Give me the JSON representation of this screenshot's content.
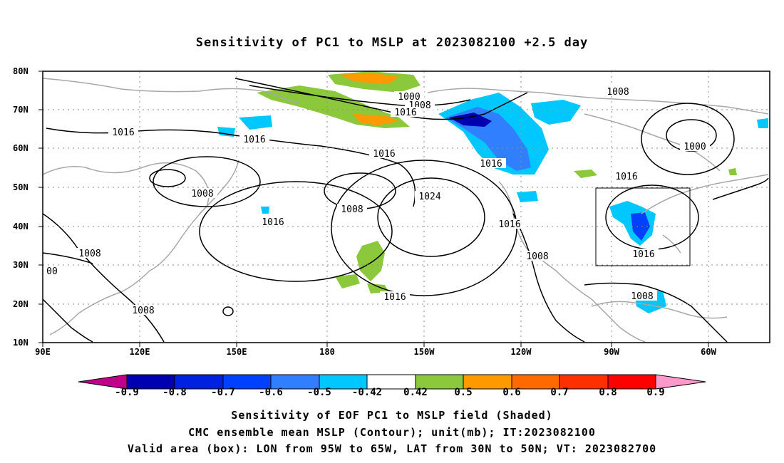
{
  "title": "Sensitivity of PC1 to MSLP at 2023082100 +2.5 day",
  "lat_labels": [
    "80N",
    "70N",
    "60N",
    "50N",
    "40N",
    "30N",
    "20N",
    "10N"
  ],
  "lon_labels": [
    "90E",
    "120E",
    "150E",
    "180",
    "150W",
    "120W",
    "90W",
    "60W"
  ],
  "contour_labels": [
    "1000",
    "1008",
    "1016",
    "1016",
    "1016",
    "1016",
    "1008",
    "1016",
    "1008",
    "1016",
    "1024",
    "1016",
    "1008",
    "1008",
    "1016",
    "1016",
    "1016",
    "1008",
    "1008",
    "1000",
    "1008",
    "00"
  ],
  "colorbar": {
    "labels": [
      "-0.9",
      "-0.8",
      "-0.7",
      "-0.6",
      "-0.5",
      "-0.42",
      "0.42",
      "0.5",
      "0.6",
      "0.7",
      "0.8",
      "0.9"
    ],
    "colors": [
      "#c0008c",
      "#0000b0",
      "#0022e0",
      "#0040ff",
      "#2f7fff",
      "#00c8ff",
      "#ffffff",
      "#8cc83c",
      "#ff9900",
      "#ff6a00",
      "#ff3000",
      "#ff0000",
      "#ff99cc"
    ]
  },
  "captions": [
    "Sensitivity of EOF PC1 to MSLP field (Shaded)",
    "CMC ensemble mean MSLP (Contour); unit(mb); IT:2023082100",
    "Valid area (box): LON from 95W to 65W, LAT from 30N to 50N; VT: 2023082700"
  ],
  "colors": {
    "coast": "#a8a8a8",
    "contour": "#000000",
    "grid": "#8c8c8c",
    "positive": "#8cc83c",
    "negative": "#2f7fff"
  }
}
